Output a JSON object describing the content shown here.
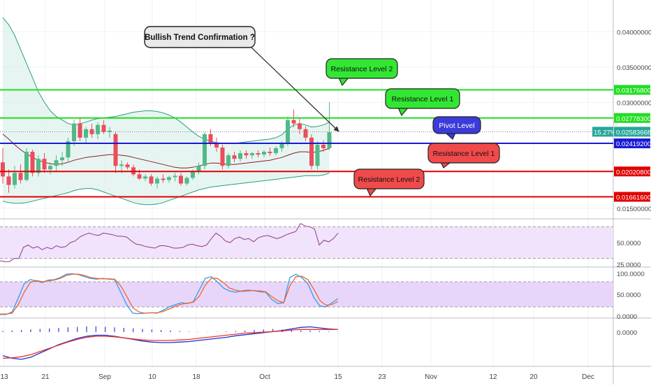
{
  "chart_data": {
    "type": "candlestick",
    "annotation_title": "Bullish Trend Confirmation ?",
    "callouts": [
      {
        "label": "Resistance Level 2",
        "kind": "resistance",
        "color": "#33e633"
      },
      {
        "label": "Resistance Level 1",
        "kind": "resistance",
        "color": "#33e633"
      },
      {
        "label": "Pivot Level",
        "kind": "pivot",
        "color": "#3b3bd9"
      },
      {
        "label": "Resistance Level 1",
        "kind": "support",
        "color": "#f04a4a"
      },
      {
        "label": "Resistance Level 2",
        "kind": "support",
        "color": "#f04a4a"
      }
    ],
    "levels": [
      {
        "value": 0.031768,
        "label": "0.03176800",
        "color": "#22dd22"
      },
      {
        "value": 0.027783,
        "label": "0.02778300",
        "color": "#22dd22"
      },
      {
        "value": 0.024192,
        "label": "0.02419200",
        "color": "#1a1ad6"
      },
      {
        "value": 0.020208,
        "label": "0.02020800",
        "color": "#e00000"
      },
      {
        "value": 0.016616,
        "label": "0.01661600",
        "color": "#e00000"
      }
    ],
    "price_axis": {
      "ticks": [
        {
          "value": 0.04,
          "label": "0.04000000"
        },
        {
          "value": 0.035,
          "label": "0.03500000"
        },
        {
          "value": 0.03,
          "label": "0.03000000"
        },
        {
          "value": 0.015,
          "label": "0.01500000"
        }
      ],
      "ylim": [
        0.0135,
        0.0445
      ]
    },
    "current_price": {
      "value": 0.02583668,
      "label": "0.02583668",
      "change": "15.27%",
      "color": "#26a69a"
    },
    "x_axis": {
      "labels": [
        "13",
        "21",
        "Sep",
        "10",
        "18",
        "Oct",
        "15",
        "23",
        "Nov",
        "12",
        "20",
        "Dec"
      ]
    },
    "candles": [
      {
        "o": 0.0215,
        "h": 0.0235,
        "l": 0.0185,
        "c": 0.0195
      },
      {
        "o": 0.0195,
        "h": 0.0205,
        "l": 0.0172,
        "c": 0.0183
      },
      {
        "o": 0.0183,
        "h": 0.021,
        "l": 0.0178,
        "c": 0.02
      },
      {
        "o": 0.02,
        "h": 0.0212,
        "l": 0.0185,
        "c": 0.019
      },
      {
        "o": 0.019,
        "h": 0.0235,
        "l": 0.0188,
        "c": 0.023
      },
      {
        "o": 0.023,
        "h": 0.0233,
        "l": 0.0195,
        "c": 0.02
      },
      {
        "o": 0.02,
        "h": 0.0225,
        "l": 0.0195,
        "c": 0.022
      },
      {
        "o": 0.022,
        "h": 0.0228,
        "l": 0.02,
        "c": 0.0205
      },
      {
        "o": 0.0205,
        "h": 0.0215,
        "l": 0.0198,
        "c": 0.021
      },
      {
        "o": 0.021,
        "h": 0.0225,
        "l": 0.0202,
        "c": 0.0218
      },
      {
        "o": 0.0218,
        "h": 0.023,
        "l": 0.021,
        "c": 0.0222
      },
      {
        "o": 0.0222,
        "h": 0.025,
        "l": 0.0215,
        "c": 0.0245
      },
      {
        "o": 0.0245,
        "h": 0.0275,
        "l": 0.0238,
        "c": 0.027
      },
      {
        "o": 0.027,
        "h": 0.0278,
        "l": 0.0245,
        "c": 0.025
      },
      {
        "o": 0.025,
        "h": 0.0265,
        "l": 0.0242,
        "c": 0.0262
      },
      {
        "o": 0.0262,
        "h": 0.027,
        "l": 0.025,
        "c": 0.0255
      },
      {
        "o": 0.0255,
        "h": 0.0272,
        "l": 0.0248,
        "c": 0.0268
      },
      {
        "o": 0.0268,
        "h": 0.0275,
        "l": 0.0255,
        "c": 0.0258
      },
      {
        "o": 0.0258,
        "h": 0.0265,
        "l": 0.025,
        "c": 0.026
      },
      {
        "o": 0.0255,
        "h": 0.0258,
        "l": 0.02,
        "c": 0.021
      },
      {
        "o": 0.021,
        "h": 0.0218,
        "l": 0.02,
        "c": 0.0212
      },
      {
        "o": 0.0212,
        "h": 0.0215,
        "l": 0.0205,
        "c": 0.0208
      },
      {
        "o": 0.0208,
        "h": 0.0212,
        "l": 0.0195,
        "c": 0.0198
      },
      {
        "o": 0.0198,
        "h": 0.0205,
        "l": 0.019,
        "c": 0.0192
      },
      {
        "o": 0.0192,
        "h": 0.0198,
        "l": 0.0188,
        "c": 0.0195
      },
      {
        "o": 0.0195,
        "h": 0.0198,
        "l": 0.0182,
        "c": 0.0185
      },
      {
        "o": 0.0185,
        "h": 0.0195,
        "l": 0.0178,
        "c": 0.0192
      },
      {
        "o": 0.0192,
        "h": 0.0198,
        "l": 0.0186,
        "c": 0.019
      },
      {
        "o": 0.019,
        "h": 0.0196,
        "l": 0.0186,
        "c": 0.0194
      },
      {
        "o": 0.0194,
        "h": 0.02,
        "l": 0.0188,
        "c": 0.0196
      },
      {
        "o": 0.0196,
        "h": 0.02,
        "l": 0.0182,
        "c": 0.0185
      },
      {
        "o": 0.0185,
        "h": 0.0195,
        "l": 0.0182,
        "c": 0.0193
      },
      {
        "o": 0.0193,
        "h": 0.0205,
        "l": 0.019,
        "c": 0.0202
      },
      {
        "o": 0.0202,
        "h": 0.0215,
        "l": 0.0198,
        "c": 0.021
      },
      {
        "o": 0.021,
        "h": 0.0258,
        "l": 0.0205,
        "c": 0.0255
      },
      {
        "o": 0.0255,
        "h": 0.0262,
        "l": 0.0238,
        "c": 0.0242
      },
      {
        "o": 0.0242,
        "h": 0.025,
        "l": 0.023,
        "c": 0.0236
      },
      {
        "o": 0.0236,
        "h": 0.024,
        "l": 0.0205,
        "c": 0.021
      },
      {
        "o": 0.021,
        "h": 0.0228,
        "l": 0.0206,
        "c": 0.0225
      },
      {
        "o": 0.0225,
        "h": 0.023,
        "l": 0.0215,
        "c": 0.022
      },
      {
        "o": 0.022,
        "h": 0.0232,
        "l": 0.0216,
        "c": 0.0228
      },
      {
        "o": 0.0228,
        "h": 0.0232,
        "l": 0.022,
        "c": 0.0225
      },
      {
        "o": 0.0225,
        "h": 0.023,
        "l": 0.022,
        "c": 0.0228
      },
      {
        "o": 0.0228,
        "h": 0.0232,
        "l": 0.0222,
        "c": 0.0226
      },
      {
        "o": 0.0226,
        "h": 0.0232,
        "l": 0.0222,
        "c": 0.023
      },
      {
        "o": 0.023,
        "h": 0.0236,
        "l": 0.0224,
        "c": 0.0228
      },
      {
        "o": 0.0228,
        "h": 0.0238,
        "l": 0.0225,
        "c": 0.0235
      },
      {
        "o": 0.0235,
        "h": 0.0245,
        "l": 0.023,
        "c": 0.0242
      },
      {
        "o": 0.0242,
        "h": 0.028,
        "l": 0.0238,
        "c": 0.0275
      },
      {
        "o": 0.0275,
        "h": 0.029,
        "l": 0.0265,
        "c": 0.027
      },
      {
        "o": 0.027,
        "h": 0.0278,
        "l": 0.0255,
        "c": 0.0262
      },
      {
        "o": 0.0262,
        "h": 0.0266,
        "l": 0.0245,
        "c": 0.025
      },
      {
        "o": 0.025,
        "h": 0.0255,
        "l": 0.0205,
        "c": 0.021
      },
      {
        "o": 0.021,
        "h": 0.0245,
        "l": 0.0205,
        "c": 0.024
      },
      {
        "o": 0.024,
        "h": 0.0246,
        "l": 0.023,
        "c": 0.0235
      },
      {
        "o": 0.0235,
        "h": 0.03,
        "l": 0.0232,
        "c": 0.0258
      }
    ],
    "bollinger": {
      "upper": [
        0.042,
        0.041,
        0.0395,
        0.0375,
        0.0355,
        0.0335,
        0.0315,
        0.03,
        0.0288,
        0.028,
        0.0275,
        0.027,
        0.0268,
        0.027,
        0.0272,
        0.0275,
        0.0277,
        0.0278,
        0.0279,
        0.028,
        0.0282,
        0.0284,
        0.0286,
        0.0287,
        0.0288,
        0.0288,
        0.0287,
        0.0285,
        0.0282,
        0.0278,
        0.0272,
        0.0265,
        0.0258,
        0.0252,
        0.0248,
        0.0245,
        0.0243,
        0.0242,
        0.0242,
        0.0242,
        0.0243,
        0.0244,
        0.0245,
        0.0246,
        0.0247,
        0.0248,
        0.025,
        0.0254,
        0.0262,
        0.0268,
        0.027,
        0.0268,
        0.0265,
        0.0266,
        0.0268,
        0.0272
      ],
      "middle": [
        0.0255,
        0.0248,
        0.024,
        0.0233,
        0.0227,
        0.0222,
        0.0218,
        0.0215,
        0.0213,
        0.0212,
        0.0213,
        0.0215,
        0.0218,
        0.022,
        0.0222,
        0.0223,
        0.0224,
        0.0225,
        0.0226,
        0.0226,
        0.0225,
        0.0224,
        0.0222,
        0.022,
        0.0218,
        0.0216,
        0.0214,
        0.0212,
        0.021,
        0.0208,
        0.0207,
        0.0207,
        0.0208,
        0.021,
        0.0212,
        0.0214,
        0.0214,
        0.0213,
        0.0212,
        0.0212,
        0.0213,
        0.0214,
        0.0215,
        0.0216,
        0.0217,
        0.0218,
        0.022,
        0.0222,
        0.0225,
        0.0228,
        0.023,
        0.023,
        0.0229,
        0.023,
        0.0232,
        0.0235
      ],
      "lower": [
        0.016,
        0.0158,
        0.0157,
        0.0157,
        0.0158,
        0.016,
        0.0162,
        0.0164,
        0.0166,
        0.0168,
        0.017,
        0.0172,
        0.0175,
        0.0177,
        0.0178,
        0.0178,
        0.0176,
        0.0173,
        0.017,
        0.0167,
        0.0164,
        0.0161,
        0.0158,
        0.0156,
        0.0155,
        0.0155,
        0.0156,
        0.0158,
        0.0161,
        0.0164,
        0.0167,
        0.017,
        0.0173,
        0.0176,
        0.0178,
        0.018,
        0.0181,
        0.0182,
        0.0183,
        0.0184,
        0.0185,
        0.0186,
        0.0187,
        0.0188,
        0.0189,
        0.019,
        0.0191,
        0.0192,
        0.0193,
        0.0194,
        0.0195,
        0.0196,
        0.0196,
        0.0196,
        0.0197,
        0.02
      ]
    },
    "rsi": {
      "label": "50.0000",
      "lower_label": "25.0000",
      "ylim": [
        20,
        80
      ],
      "band": [
        30,
        70
      ],
      "values": [
        27,
        26,
        26,
        30,
        30,
        44,
        47,
        43,
        45,
        41,
        44,
        42,
        46,
        44,
        45,
        50,
        52,
        57,
        60,
        62,
        60,
        59,
        62,
        61,
        60,
        58,
        58,
        57,
        52,
        48,
        47,
        45,
        44,
        43,
        46,
        46,
        45,
        43,
        43,
        44,
        47,
        48,
        46,
        45,
        47,
        55,
        62,
        58,
        52,
        50,
        55,
        57,
        54,
        55,
        51,
        56,
        58,
        59,
        57,
        55,
        57,
        60,
        62,
        64,
        74,
        71,
        70,
        67,
        47,
        53,
        51,
        55,
        62
      ]
    },
    "stoch": {
      "top_label": "100.0000",
      "mid_label": "50.0000",
      "bottom_label": "0.0000",
      "ylim": [
        0,
        100
      ],
      "band": [
        20,
        80
      ],
      "k": [
        2,
        2,
        8,
        40,
        75,
        85,
        82,
        78,
        84,
        85,
        90,
        98,
        99,
        97,
        92,
        88,
        86,
        88,
        86,
        85,
        55,
        25,
        5,
        4,
        5,
        6,
        5,
        12,
        20,
        25,
        30,
        28,
        32,
        60,
        88,
        92,
        80,
        65,
        58,
        55,
        58,
        60,
        59,
        56,
        55,
        38,
        28,
        30,
        90,
        98,
        90,
        75,
        42,
        22,
        20,
        30,
        40
      ],
      "d": [
        3,
        3,
        5,
        25,
        55,
        78,
        83,
        80,
        82,
        84,
        88,
        95,
        98,
        98,
        95,
        90,
        88,
        87,
        87,
        86,
        70,
        45,
        18,
        8,
        5,
        6,
        6,
        9,
        15,
        21,
        26,
        29,
        31,
        45,
        72,
        88,
        88,
        78,
        65,
        60,
        57,
        58,
        59,
        58,
        56,
        45,
        35,
        30,
        70,
        92,
        93,
        85,
        62,
        35,
        24,
        26,
        33
      ]
    },
    "macd": {
      "zero_label": "0.0000",
      "ylim": [
        -0.0006,
        0.0002
      ],
      "macd_line": [
        -0.00045,
        -0.0005,
        -0.00052,
        -0.00048,
        -0.0004,
        -0.00032,
        -0.00024,
        -0.00018,
        -0.00012,
        -8e-05,
        -6e-05,
        -6e-05,
        -8e-05,
        -0.00011,
        -0.00014,
        -0.00017,
        -0.00019,
        -0.0002,
        -0.0002,
        -0.00019,
        -0.00018,
        -0.00016,
        -0.00014,
        -0.00012,
        -0.0001,
        -7e-05,
        -5e-05,
        -3e-05,
        -1e-05,
        1e-05,
        3e-05,
        6e-05,
        9e-05,
        0.0001,
        8e-05,
        6e-05,
        5e-05
      ],
      "signal_line": [
        -0.0005,
        -0.00049,
        -0.00047,
        -0.00043,
        -0.00037,
        -0.00031,
        -0.00025,
        -0.00019,
        -0.00014,
        -0.0001,
        -8e-05,
        -8e-05,
        -9e-05,
        -0.00011,
        -0.00013,
        -0.00015,
        -0.00016,
        -0.00016,
        -0.00016,
        -0.00015,
        -0.00014,
        -0.00012,
        -0.0001,
        -8e-05,
        -6e-05,
        -4e-05,
        -2e-05,
        -1e-05,
        0.0,
        1e-05,
        2e-05,
        4e-05,
        5e-05,
        5e-05,
        5e-05,
        5e-05,
        5e-05
      ],
      "histogram": [
        2e-05,
        3e-05,
        4e-05,
        5e-05,
        6e-05,
        7e-05,
        8e-05,
        9e-05,
        0.0001,
        0.00011,
        0.00011,
        0.0001,
        9e-05,
        8e-05,
        7e-05,
        6e-05,
        5e-05,
        4e-05,
        3e-05,
        2e-05,
        1e-05,
        5e-06,
        5e-06,
        5e-06,
        1e-05,
        2e-05,
        3e-05,
        4e-05,
        5e-05,
        6e-05,
        5e-05,
        4e-05,
        3e-05,
        3e-05,
        2e-05,
        1e-05,
        5e-06
      ]
    }
  }
}
